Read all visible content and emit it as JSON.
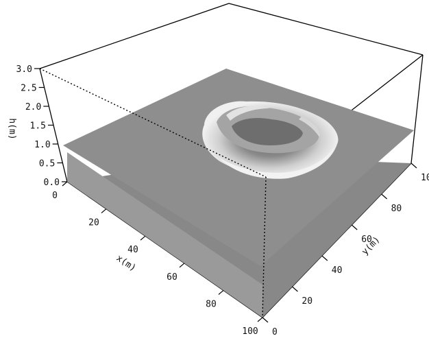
{
  "chart_data": {
    "type": "surface3d",
    "title": "",
    "xlabel": "x(m)",
    "ylabel": "y(m)",
    "zlabel": "h(m)",
    "xlim": [
      0,
      100
    ],
    "ylim": [
      0,
      100
    ],
    "zlim": [
      0.0,
      3.0
    ],
    "x_ticks": [
      0,
      20,
      40,
      60,
      80,
      100
    ],
    "y_ticks": [
      0,
      20,
      40,
      60,
      80,
      100
    ],
    "z_ticks": [
      "0.0",
      "0.5",
      "1.0",
      "1.5",
      "2.0",
      "2.5",
      "3.0"
    ],
    "surfaces": [
      {
        "level": 0.0,
        "shape": "flat plane"
      },
      {
        "level": 1.0,
        "shape": "flat plane with ring-shaped bump"
      }
    ],
    "bump": {
      "center_x": 50,
      "center_y": 55,
      "radius_m": 18,
      "peak_h": 1.8
    },
    "colors": {
      "plane_top": "#8e8e8e",
      "plane_bottom": "#888888",
      "bump_light": "#e2e2e2",
      "bump_dark": "#5e5e5e"
    }
  }
}
